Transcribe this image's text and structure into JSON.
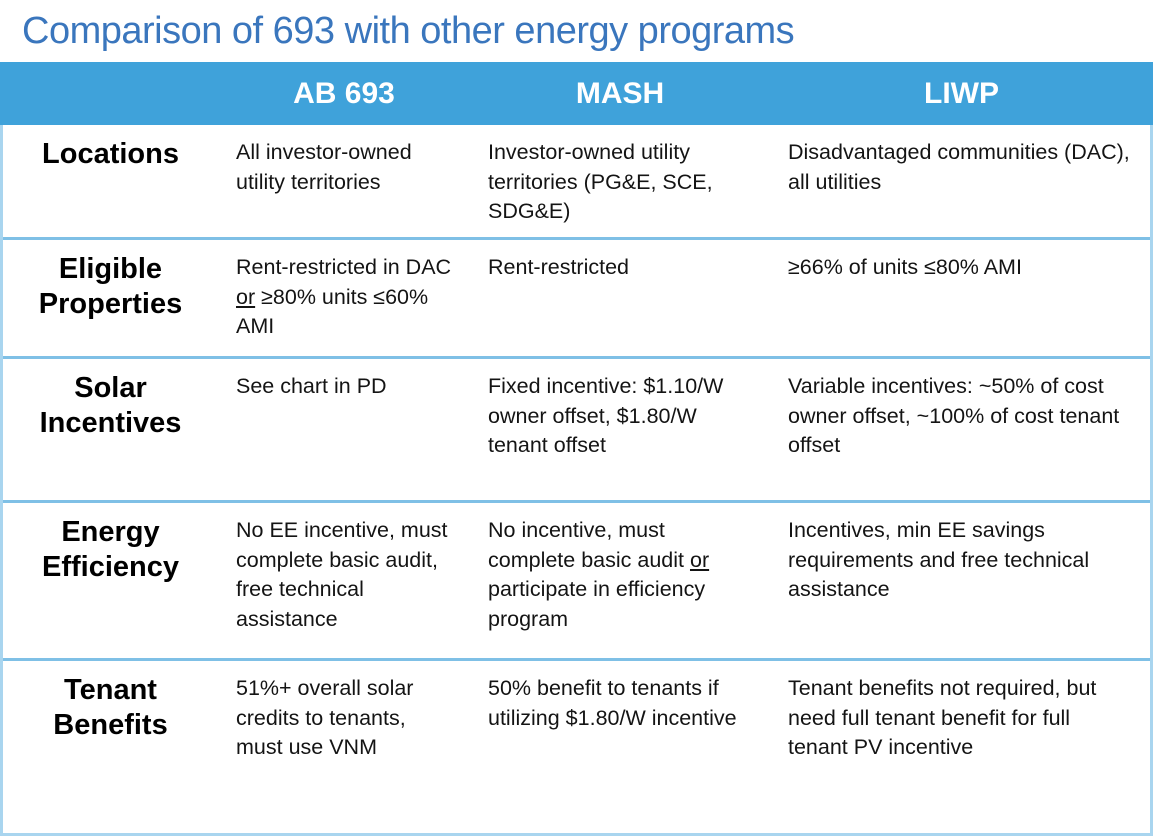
{
  "title": "Comparison of 693 with other energy programs",
  "colors": {
    "title_color": "#3a76bd",
    "header_bg": "#3fa2da",
    "header_text": "#ffffff",
    "row_divider": "#7fc0e6",
    "outer_border": "#a9d5ef"
  },
  "chart_data": {
    "type": "table",
    "title": "Comparison of 693 with other energy programs",
    "columns": [
      "",
      "AB 693",
      "MASH",
      "LIWP"
    ],
    "row_labels": [
      "Locations",
      "Eligible Properties",
      "Solar Incentives",
      "Energy Efficiency",
      "Tenant Benefits"
    ]
  },
  "header": {
    "col_ab693": "AB 693",
    "col_mash": "MASH",
    "col_liwp": "LIWP"
  },
  "rows": {
    "locations": {
      "label": "Locations",
      "ab693": "All investor-owned utility territories",
      "mash": "Investor-owned utility territories (PG&E, SCE, SDG&E)",
      "liwp": "Disadvantaged communities (DAC), all utilities"
    },
    "eligible": {
      "label": "Eligible Properties",
      "ab693": {
        "pre": "Rent-restricted in DAC ",
        "underlined": "or",
        "post": " ≥80% units ≤60% AMI"
      },
      "mash": "Rent-restricted",
      "liwp": "≥66% of units ≤80% AMI"
    },
    "solar": {
      "label": "Solar Incentives",
      "ab693": "See chart in PD",
      "mash": "Fixed incentive: $1.10/W owner offset, $1.80/W tenant offset",
      "liwp": "Variable incentives: ~50% of cost owner offset, ~100% of cost tenant offset"
    },
    "energy": {
      "label": "Energy Efficiency",
      "ab693": "No EE incentive, must complete basic audit, free technical assistance",
      "mash": {
        "pre": "No incentive, must complete basic audit ",
        "underlined": "or",
        "post": " participate in efficiency program"
      },
      "liwp": "Incentives, min EE savings requirements and free technical assistance"
    },
    "tenant": {
      "label": "Tenant Benefits",
      "ab693": "51%+ overall solar credits to tenants, must use VNM",
      "mash": "50% benefit to tenants if utilizing $1.80/W incentive",
      "liwp": "Tenant benefits not required, but need full tenant benefit for full tenant PV incentive"
    }
  }
}
